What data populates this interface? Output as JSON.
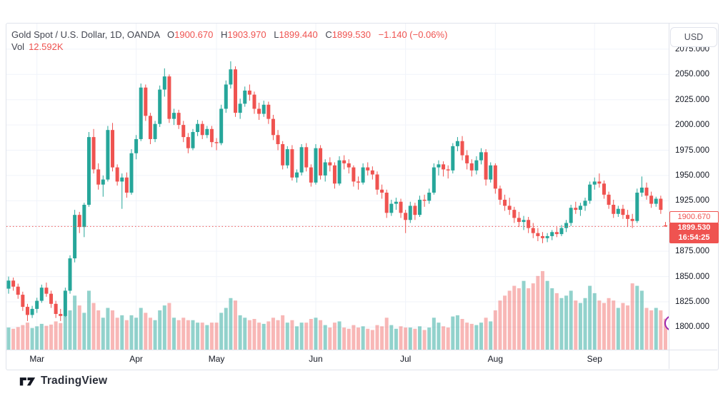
{
  "header": {
    "symbol_title": "Gold Spot / U.S. Dollar, 1D, OANDA",
    "o_label": "O",
    "h_label": "H",
    "l_label": "L",
    "c_label": "C",
    "open": "1900.670",
    "high": "1903.970",
    "low": "1899.440",
    "close": "1899.530",
    "change": "−1.140 (−0.06%)",
    "vol_label": "Vol",
    "vol_value": "12.592K"
  },
  "toolbar": {
    "currency_label": "USD"
  },
  "price_axis": {
    "open_price_tag": "1900.670",
    "last_price_tag": "1899.530",
    "countdown_tag": "16:54:25"
  },
  "footer": {
    "brand": "TradingView"
  },
  "colors": {
    "up": "#26a69a",
    "down": "#ef5350",
    "vol_up": "rgba(38,166,154,0.50)",
    "vol_down": "rgba(239,83,80,0.42)",
    "grid": "#f0f3fa",
    "accent_red": "#ef5350",
    "axis_text": "#131722",
    "border": "#e0e3eb",
    "marker_purple": "#9c27b0"
  },
  "chart_data": {
    "type": "candlestick",
    "title": "Gold Spot / U.S. Dollar",
    "interval": "1D",
    "exchange": "OANDA",
    "currency": "USD",
    "legend_ohlc": {
      "open": 1900.67,
      "high": 1903.97,
      "low": 1899.44,
      "close": 1899.53,
      "change": -1.14,
      "change_pct": -0.06
    },
    "volume_last": 12.592,
    "volume_unit": "K",
    "last_price": 1899.53,
    "open_price_line": 1900.67,
    "countdown": "16:54:25",
    "visible_price_range": [
      1777,
      2081
    ],
    "grid_prices": [
      1800,
      1825,
      1850,
      1875,
      1900,
      1925,
      1950,
      1975,
      2000,
      2025,
      2050,
      2075
    ],
    "y_ticks": [
      {
        "v": 2075,
        "label": "2075.000"
      },
      {
        "v": 2050,
        "label": "2050.000"
      },
      {
        "v": 2025,
        "label": "2025.000"
      },
      {
        "v": 2000,
        "label": "2000.000"
      },
      {
        "v": 1975,
        "label": "1975.000"
      },
      {
        "v": 1950,
        "label": "1950.000"
      },
      {
        "v": 1925,
        "label": "1925.000"
      },
      {
        "v": 1875,
        "label": "1875.000"
      },
      {
        "v": 1850,
        "label": "1850.000"
      },
      {
        "v": 1825,
        "label": "1825.000"
      },
      {
        "v": 1800,
        "label": "1800.000"
      }
    ],
    "x_ticks": [
      {
        "label": "Mar",
        "i": 6
      },
      {
        "label": "Apr",
        "i": 27
      },
      {
        "label": "May",
        "i": 44
      },
      {
        "label": "Jun",
        "i": 65
      },
      {
        "label": "Jul",
        "i": 84
      },
      {
        "label": "Aug",
        "i": 103
      },
      {
        "label": "Sep",
        "i": 124
      }
    ],
    "event_marker": {
      "shape": "circle",
      "stroke": "#9c27b0",
      "note": "partially clipped circle at right edge of volume pane"
    },
    "candles_format": [
      "open",
      "high",
      "low",
      "close",
      "volume_K"
    ],
    "candles": [
      [
        1838,
        1850,
        1833,
        1846,
        9
      ],
      [
        1846,
        1849,
        1836,
        1840,
        8.5
      ],
      [
        1840,
        1843,
        1828,
        1832,
        9.2
      ],
      [
        1832,
        1835,
        1816,
        1820,
        10
      ],
      [
        1820,
        1823,
        1806,
        1812,
        11
      ],
      [
        1812,
        1821,
        1809,
        1818,
        8.8
      ],
      [
        1818,
        1829,
        1814,
        1826,
        9.5
      ],
      [
        1826,
        1842,
        1824,
        1839,
        10.5
      ],
      [
        1839,
        1844,
        1830,
        1833,
        9.7
      ],
      [
        1833,
        1836,
        1819,
        1823,
        10.2
      ],
      [
        1823,
        1826,
        1809,
        1813,
        11.5
      ],
      [
        1813,
        1818,
        1806,
        1811,
        10.8
      ],
      [
        1811,
        1839,
        1810,
        1836,
        14
      ],
      [
        1836,
        1871,
        1833,
        1868,
        16
      ],
      [
        1868,
        1916,
        1864,
        1911,
        22
      ],
      [
        1911,
        1914,
        1893,
        1899,
        18
      ],
      [
        1899,
        1923,
        1889,
        1921,
        15
      ],
      [
        1921,
        1993,
        1919,
        1988,
        24
      ],
      [
        1988,
        1996,
        1952,
        1956,
        19
      ],
      [
        1956,
        1962,
        1936,
        1941,
        16
      ],
      [
        1941,
        1950,
        1929,
        1946,
        13
      ],
      [
        1946,
        1999,
        1944,
        1995,
        17
      ],
      [
        1995,
        2002,
        1954,
        1958,
        16
      ],
      [
        1958,
        1961,
        1940,
        1944,
        13
      ],
      [
        1944,
        1952,
        1917,
        1948,
        14
      ],
      [
        1948,
        1953,
        1928,
        1933,
        12
      ],
      [
        1933,
        1976,
        1931,
        1972,
        14
      ],
      [
        1972,
        1990,
        1966,
        1986,
        13
      ],
      [
        1986,
        2041,
        1984,
        2037,
        17
      ],
      [
        2037,
        2040,
        2004,
        2009,
        15
      ],
      [
        2009,
        2012,
        1981,
        1986,
        13
      ],
      [
        1986,
        2004,
        1983,
        2001,
        12
      ],
      [
        2001,
        2039,
        1998,
        2035,
        16
      ],
      [
        2035,
        2056,
        2028,
        2048,
        18
      ],
      [
        2048,
        2050,
        2002,
        2006,
        19
      ],
      [
        2006,
        2016,
        2000,
        2012,
        13
      ],
      [
        2012,
        2015,
        1996,
        2000,
        12
      ],
      [
        2000,
        2004,
        1983,
        1988,
        13
      ],
      [
        1988,
        1992,
        1972,
        1977,
        12
      ],
      [
        1977,
        1996,
        1975,
        1993,
        12
      ],
      [
        1993,
        2005,
        1989,
        2001,
        11
      ],
      [
        2001,
        2004,
        1986,
        1990,
        11
      ],
      [
        1990,
        1999,
        1987,
        1996,
        10
      ],
      [
        1996,
        1999,
        1978,
        1983,
        11
      ],
      [
        1983,
        1987,
        1975,
        1982,
        11
      ],
      [
        1982,
        2020,
        1980,
        2016,
        15
      ],
      [
        2016,
        2044,
        2012,
        2040,
        17
      ],
      [
        2040,
        2063,
        2036,
        2055,
        21
      ],
      [
        2055,
        2058,
        2008,
        2012,
        20
      ],
      [
        2012,
        2026,
        2006,
        2021,
        14
      ],
      [
        2021,
        2038,
        2018,
        2034,
        13
      ],
      [
        2034,
        2040,
        2024,
        2030,
        12
      ],
      [
        2030,
        2033,
        2011,
        2016,
        12.5
      ],
      [
        2016,
        2022,
        2005,
        2011,
        11
      ],
      [
        2011,
        2024,
        2008,
        2020,
        10.5
      ],
      [
        2020,
        2023,
        2001,
        2006,
        11.5
      ],
      [
        2006,
        2010,
        1985,
        1990,
        13
      ],
      [
        1990,
        1995,
        1975,
        1981,
        12
      ],
      [
        1981,
        1984,
        1956,
        1960,
        14
      ],
      [
        1960,
        1979,
        1957,
        1976,
        11
      ],
      [
        1976,
        1980,
        1945,
        1948,
        12
      ],
      [
        1948,
        1956,
        1943,
        1953,
        9.5
      ],
      [
        1953,
        1981,
        1950,
        1978,
        11
      ],
      [
        1978,
        1982,
        1954,
        1958,
        11
      ],
      [
        1958,
        1961,
        1939,
        1943,
        12.5
      ],
      [
        1943,
        1981,
        1941,
        1977,
        13
      ],
      [
        1977,
        1980,
        1946,
        1950,
        12
      ],
      [
        1950,
        1966,
        1944,
        1963,
        10
      ],
      [
        1963,
        1968,
        1954,
        1960,
        9
      ],
      [
        1960,
        1963,
        1937,
        1942,
        11
      ],
      [
        1942,
        1969,
        1940,
        1965,
        11.5
      ],
      [
        1965,
        1970,
        1956,
        1962,
        9
      ],
      [
        1962,
        1966,
        1952,
        1958,
        8.5
      ],
      [
        1958,
        1960,
        1939,
        1944,
        10
      ],
      [
        1944,
        1949,
        1936,
        1943,
        9
      ],
      [
        1943,
        1962,
        1941,
        1958,
        9.5
      ],
      [
        1958,
        1963,
        1950,
        1955,
        8.5
      ],
      [
        1955,
        1959,
        1946,
        1951,
        8
      ],
      [
        1951,
        1954,
        1931,
        1936,
        10
      ],
      [
        1936,
        1941,
        1927,
        1933,
        9.5
      ],
      [
        1933,
        1936,
        1908,
        1913,
        13
      ],
      [
        1913,
        1926,
        1910,
        1922,
        10
      ],
      [
        1922,
        1928,
        1916,
        1924,
        8.5
      ],
      [
        1924,
        1927,
        1908,
        1913,
        9.5
      ],
      [
        1913,
        1916,
        1893,
        1906,
        9
      ],
      [
        1906,
        1924,
        1903,
        1920,
        9
      ],
      [
        1920,
        1923,
        1906,
        1911,
        8.5
      ],
      [
        1911,
        1930,
        1909,
        1926,
        9.5
      ],
      [
        1926,
        1931,
        1919,
        1925,
        8
      ],
      [
        1925,
        1937,
        1922,
        1933,
        9
      ],
      [
        1933,
        1962,
        1931,
        1958,
        13
      ],
      [
        1958,
        1965,
        1950,
        1961,
        11
      ],
      [
        1961,
        1964,
        1949,
        1956,
        9.5
      ],
      [
        1956,
        1960,
        1947,
        1955,
        9
      ],
      [
        1955,
        1982,
        1952,
        1979,
        13.5
      ],
      [
        1979,
        1988,
        1974,
        1984,
        14
      ],
      [
        1984,
        1989,
        1965,
        1970,
        12.5
      ],
      [
        1970,
        1975,
        1956,
        1962,
        11
      ],
      [
        1962,
        1966,
        1949,
        1955,
        10.5
      ],
      [
        1955,
        1969,
        1951,
        1965,
        10
      ],
      [
        1965,
        1977,
        1961,
        1973,
        11
      ],
      [
        1973,
        1976,
        1940,
        1946,
        13
      ],
      [
        1946,
        1963,
        1943,
        1960,
        11.5
      ],
      [
        1960,
        1962,
        1932,
        1937,
        16
      ],
      [
        1937,
        1940,
        1921,
        1926,
        20
      ],
      [
        1926,
        1931,
        1915,
        1920,
        22
      ],
      [
        1920,
        1928,
        1911,
        1916,
        24
      ],
      [
        1916,
        1919,
        1903,
        1908,
        26
      ],
      [
        1908,
        1914,
        1899,
        1904,
        25
      ],
      [
        1904,
        1910,
        1896,
        1906,
        28
      ],
      [
        1906,
        1909,
        1893,
        1898,
        25
      ],
      [
        1898,
        1903,
        1888,
        1893,
        27
      ],
      [
        1893,
        1898,
        1885,
        1890,
        30
      ],
      [
        1890,
        1894,
        1883,
        1888,
        32
      ],
      [
        1888,
        1893,
        1884,
        1890,
        28
      ],
      [
        1890,
        1896,
        1886,
        1894,
        25
      ],
      [
        1894,
        1899,
        1889,
        1892,
        23
      ],
      [
        1892,
        1901,
        1890,
        1898,
        21
      ],
      [
        1898,
        1906,
        1894,
        1903,
        22
      ],
      [
        1903,
        1921,
        1900,
        1918,
        24
      ],
      [
        1918,
        1924,
        1912,
        1916,
        20
      ],
      [
        1916,
        1923,
        1910,
        1920,
        19
      ],
      [
        1920,
        1928,
        1915,
        1925,
        21
      ],
      [
        1925,
        1944,
        1922,
        1941,
        26
      ],
      [
        1941,
        1948,
        1936,
        1944,
        23
      ],
      [
        1944,
        1952,
        1938,
        1942,
        20
      ],
      [
        1942,
        1945,
        1927,
        1931,
        19
      ],
      [
        1931,
        1934,
        1917,
        1921,
        21
      ],
      [
        1921,
        1926,
        1908,
        1912,
        20
      ],
      [
        1912,
        1920,
        1909,
        1917,
        17
      ],
      [
        1917,
        1921,
        1907,
        1911,
        19
      ],
      [
        1911,
        1916,
        1899,
        1907,
        18
      ],
      [
        1907,
        1912,
        1898,
        1905,
        27
      ],
      [
        1905,
        1937,
        1903,
        1933,
        26
      ],
      [
        1933,
        1949,
        1929,
        1938,
        24
      ],
      [
        1938,
        1943,
        1926,
        1930,
        17
      ],
      [
        1930,
        1934,
        1918,
        1922,
        16
      ],
      [
        1922,
        1929,
        1919,
        1927,
        17
      ],
      [
        1927,
        1930,
        1912,
        1916,
        16
      ],
      [
        1900.67,
        1903.97,
        1899.44,
        1899.53,
        12.592
      ]
    ]
  }
}
